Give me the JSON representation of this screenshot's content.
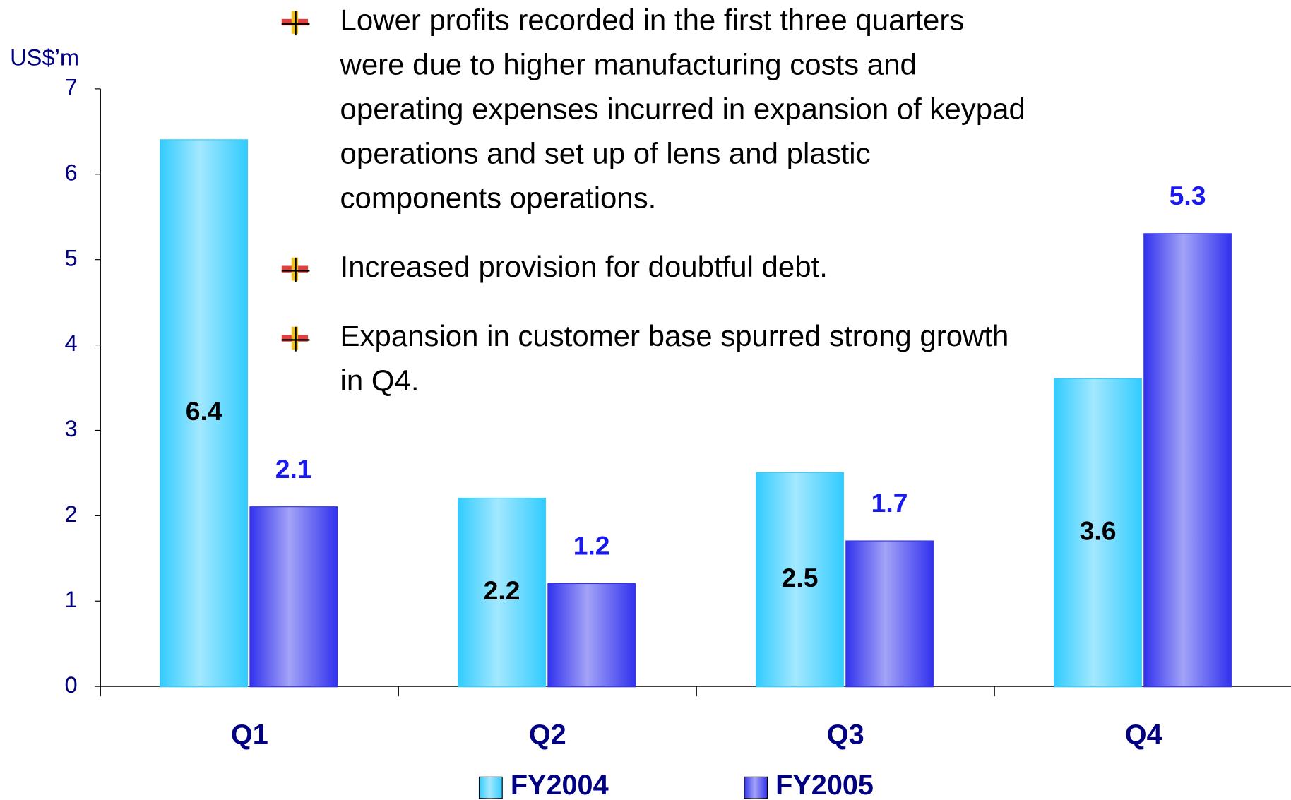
{
  "chart_data": {
    "type": "bar",
    "y_axis_label": "US$’m",
    "categories": [
      "Q1",
      "Q2",
      "Q3",
      "Q4"
    ],
    "series": [
      {
        "name": "FY2004",
        "color": "#33ccff",
        "label_color": "#000000",
        "values": [
          6.4,
          2.2,
          2.5,
          3.6
        ]
      },
      {
        "name": "FY2005",
        "color": "#3333ee",
        "label_color": "#1a1aee",
        "values": [
          2.1,
          1.2,
          1.7,
          5.3
        ]
      }
    ],
    "ylim": [
      0,
      7
    ],
    "yticks": [
      0,
      1,
      2,
      3,
      4,
      5,
      6,
      7
    ],
    "annotations": [
      [
        "Lower profits recorded in the first three quarters",
        "were due to higher manufacturing costs and",
        "operating expenses incurred in expansion of keypad",
        "operations and set up of lens and plastic",
        "components operations."
      ],
      [
        "Increased provision for doubtful debt."
      ],
      [
        "Expansion in customer base spurred strong growth",
        "in Q4."
      ]
    ]
  }
}
